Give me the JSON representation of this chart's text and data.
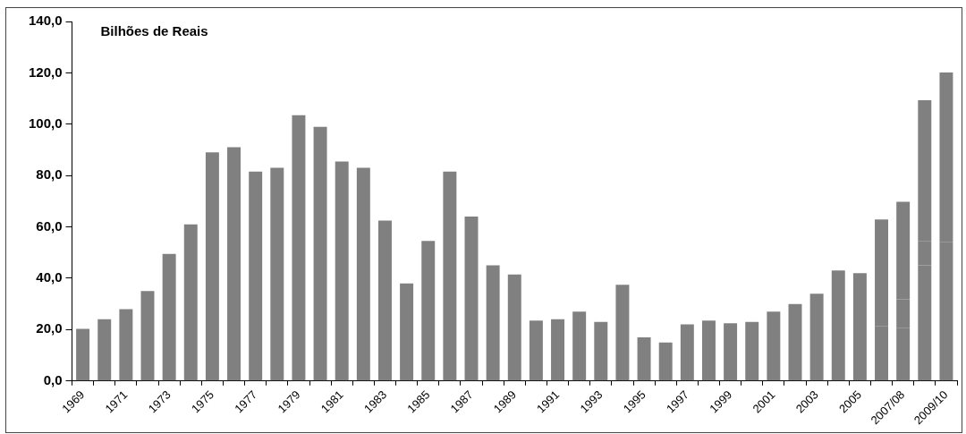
{
  "chart_data": {
    "type": "bar",
    "stacked": true,
    "annotations": [
      "Bilhões de Reais"
    ],
    "categories": [
      "1969",
      null,
      "1971",
      null,
      "1973",
      null,
      "1975",
      null,
      "1977",
      null,
      "1979",
      null,
      "1981",
      null,
      "1983",
      null,
      "1985",
      null,
      "1987",
      null,
      "1989",
      null,
      "1991",
      null,
      "1993",
      null,
      "1995",
      null,
      "1997",
      null,
      "1999",
      null,
      "2001",
      null,
      "2003",
      null,
      "2005",
      null,
      "2007/08",
      null,
      "2009/10"
    ],
    "series": [
      {
        "color": "#808080",
        "values": [
          20.3,
          24,
          28,
          35,
          49.5,
          61,
          89,
          91,
          81.5,
          83,
          103.5,
          99,
          85.5,
          83,
          62.5,
          38,
          54.5,
          81.5,
          64,
          45,
          41.5,
          23.5,
          24,
          27,
          23,
          37.5,
          17,
          15,
          22,
          23.5,
          22.5,
          23,
          27,
          30,
          34,
          43,
          42,
          21.4,
          20.7,
          45,
          54
        ]
      },
      {
        "color": "#808080",
        "values": [
          null,
          null,
          null,
          null,
          null,
          null,
          null,
          null,
          null,
          null,
          null,
          null,
          null,
          null,
          null,
          null,
          null,
          null,
          null,
          null,
          null,
          null,
          null,
          null,
          null,
          null,
          null,
          null,
          null,
          null,
          null,
          null,
          null,
          null,
          null,
          null,
          null,
          10.9,
          11.1,
          9.5,
          null
        ]
      },
      {
        "color": "#808080",
        "values": [
          null,
          null,
          null,
          null,
          null,
          null,
          null,
          null,
          null,
          null,
          null,
          null,
          null,
          null,
          null,
          null,
          null,
          null,
          null,
          null,
          null,
          null,
          null,
          null,
          null,
          null,
          null,
          null,
          null,
          null,
          null,
          null,
          null,
          null,
          null,
          null,
          null,
          30.6,
          38,
          54.8,
          66.1
        ]
      }
    ],
    "ylim": [
      0,
      140
    ],
    "yticks": [
      {
        "value": 0,
        "label": "0,0"
      },
      {
        "value": 20,
        "label": "20,0"
      },
      {
        "value": 40,
        "label": "40,0"
      },
      {
        "value": 60,
        "label": "60,0"
      },
      {
        "value": 80,
        "label": "80,0"
      },
      {
        "value": 100,
        "label": "100,0"
      },
      {
        "value": 120,
        "label": "120,0"
      },
      {
        "value": 140,
        "label": "140,0"
      }
    ],
    "grid": false,
    "legend": false
  }
}
